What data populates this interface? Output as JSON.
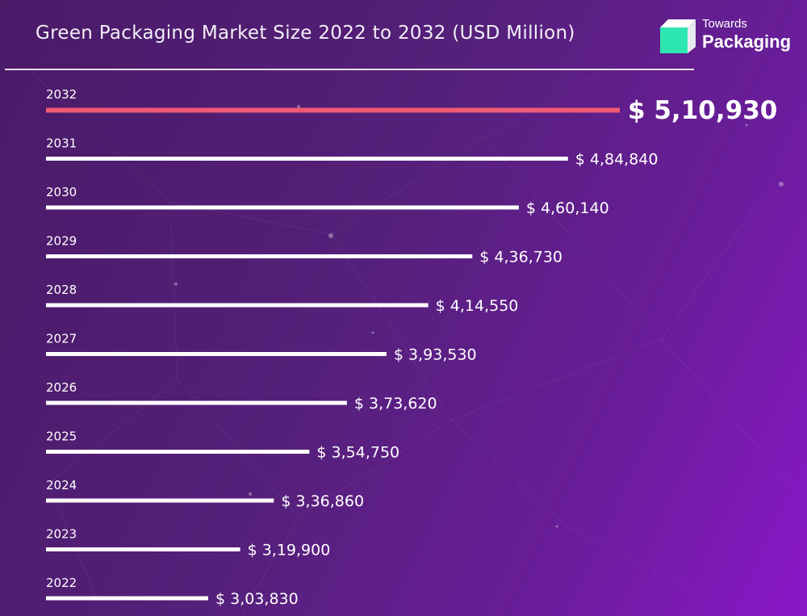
{
  "header": {
    "title": "Green Packaging Market Size 2022 to 2032 (USD Million)"
  },
  "logo": {
    "line1": "Towards",
    "line2": "Packaging"
  },
  "colors": {
    "background_start": "#4a1a67",
    "background_end": "#8a17c9",
    "bar": "#ffffff",
    "highlight_bar": "#ef5a76",
    "logo_mark": "#2ee6b0"
  },
  "chart_data": {
    "type": "bar",
    "orientation": "horizontal",
    "title": "Green Packaging Market Size 2022 to 2032 (USD Million)",
    "categories": [
      "2032",
      "2031",
      "2030",
      "2029",
      "2028",
      "2027",
      "2026",
      "2025",
      "2024",
      "2023",
      "2022"
    ],
    "values": [
      510930,
      484840,
      460140,
      436730,
      414550,
      393530,
      373620,
      354750,
      336860,
      319900,
      303830
    ],
    "value_labels": [
      "$ 5,10,930",
      "$ 4,84,840",
      "$ 4,60,140",
      "$ 4,36,730",
      "$ 4,14,550",
      "$ 3,93,530",
      "$ 3,73,620",
      "$ 3,54,750",
      "$ 3,36,860",
      "$ 3,19,900",
      "$ 3,03,830"
    ],
    "highlight": "2032",
    "grid": false
  }
}
